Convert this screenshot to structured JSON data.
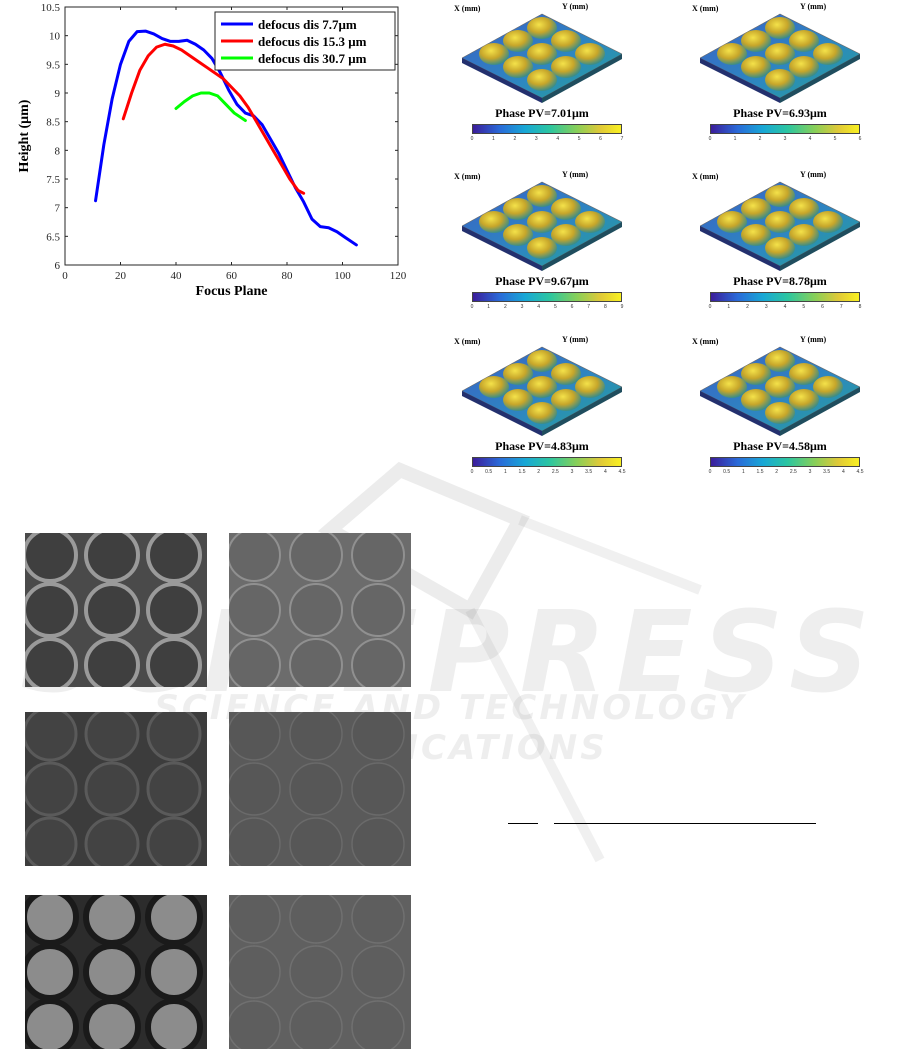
{
  "chart_data": {
    "type": "line",
    "xlabel": "Focus Plane",
    "ylabel": "Height (μm)",
    "xlim": [
      0,
      120
    ],
    "ylim": [
      6,
      10.5
    ],
    "xticks": [
      "0",
      "20",
      "40",
      "60",
      "80",
      "100",
      "120"
    ],
    "yticks": [
      "6",
      "6.5",
      "7",
      "7.5",
      "8",
      "8.5",
      "9",
      "9.5",
      "10",
      "10.5"
    ],
    "legend_position": "top-right",
    "series": [
      {
        "name": "defocus dis 7.7μm",
        "color": "#0000ff",
        "x": [
          11,
          14,
          17,
          20,
          23,
          26,
          29,
          32,
          35,
          38,
          41,
          44,
          47,
          50,
          53,
          56,
          59,
          62,
          65,
          68,
          71,
          74,
          77,
          80,
          83,
          86,
          89,
          92,
          95,
          98,
          101,
          105
        ],
        "y": [
          7.12,
          8.1,
          8.9,
          9.5,
          9.9,
          10.07,
          10.08,
          10.03,
          9.95,
          9.9,
          9.9,
          9.92,
          9.85,
          9.75,
          9.6,
          9.35,
          9.05,
          8.8,
          8.65,
          8.6,
          8.45,
          8.2,
          7.95,
          7.65,
          7.35,
          7.1,
          6.8,
          6.67,
          6.65,
          6.58,
          6.48,
          6.35
        ]
      },
      {
        "name": "defocus dis 15.3 μm",
        "color": "#ff0000",
        "x": [
          21,
          24,
          27,
          30,
          33,
          36,
          39,
          42,
          45,
          48,
          51,
          54,
          57,
          60,
          63,
          66,
          69,
          72,
          75,
          78,
          81,
          84,
          86
        ],
        "y": [
          8.55,
          9.0,
          9.4,
          9.65,
          9.8,
          9.85,
          9.82,
          9.75,
          9.65,
          9.55,
          9.45,
          9.35,
          9.25,
          9.1,
          8.95,
          8.75,
          8.5,
          8.25,
          8.0,
          7.75,
          7.5,
          7.3,
          7.25
        ]
      },
      {
        "name": "defocus dis 30.7 μm",
        "color": "#00ff00",
        "x": [
          40,
          43,
          46,
          49,
          52,
          55,
          58,
          61,
          65
        ],
        "y": [
          8.73,
          8.85,
          8.95,
          9.0,
          9.0,
          8.95,
          8.8,
          8.65,
          8.52
        ]
      }
    ]
  },
  "phase_maps": [
    {
      "caption": "Phase PV=7.01μm",
      "x_axis_label": "X (mm)",
      "y_axis_label": "Y (mm)",
      "cb_ticks": [
        "0",
        "1",
        "2",
        "3",
        "4",
        "5",
        "6",
        "7"
      ]
    },
    {
      "caption": "Phase PV=6.93μm",
      "x_axis_label": "X (mm)",
      "y_axis_label": "Y (mm)",
      "cb_ticks": [
        "0",
        "1",
        "2",
        "3",
        "4",
        "5",
        "6"
      ]
    },
    {
      "caption": "Phase PV=9.67μm",
      "x_axis_label": "X (mm)",
      "y_axis_label": "Y (mm)",
      "cb_ticks": [
        "0",
        "1",
        "2",
        "3",
        "4",
        "5",
        "6",
        "7",
        "8",
        "9"
      ]
    },
    {
      "caption": "Phase PV=8.78μm",
      "x_axis_label": "X (mm)",
      "y_axis_label": "Y (mm)",
      "cb_ticks": [
        "0",
        "1",
        "2",
        "3",
        "4",
        "5",
        "6",
        "7",
        "8"
      ]
    },
    {
      "caption": "Phase PV=4.83μm",
      "x_axis_label": "X (mm)",
      "y_axis_label": "Y (mm)",
      "cb_ticks": [
        "0",
        "0.5",
        "1",
        "1.5",
        "2",
        "2.5",
        "3",
        "3.5",
        "4",
        "4.5"
      ]
    },
    {
      "caption": "Phase PV=4.58μm",
      "x_axis_label": "X (mm)",
      "y_axis_label": "Y (mm)",
      "cb_ticks": [
        "0",
        "0.5",
        "1",
        "1.5",
        "2",
        "2.5",
        "3",
        "3.5",
        "4",
        "4.5"
      ]
    }
  ],
  "watermark": {
    "main": "SCITEPRESS",
    "sub": "SCIENCE AND TECHNOLOGY PUBLICATIONS"
  }
}
